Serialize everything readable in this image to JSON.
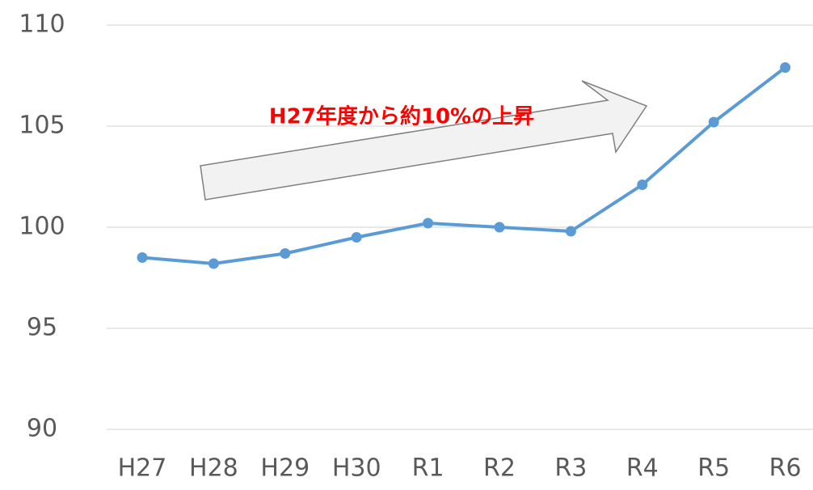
{
  "chart_data": {
    "type": "line",
    "categories": [
      "H27",
      "H28",
      "H29",
      "H30",
      "R1",
      "R2",
      "R3",
      "R4",
      "R5",
      "R6"
    ],
    "series": [
      {
        "name": null,
        "color": "#5b9bd5",
        "values": [
          98.5,
          98.2,
          98.7,
          99.5,
          100.2,
          100.0,
          99.8,
          102.1,
          105.2,
          107.9
        ]
      }
    ],
    "ylim": [
      90,
      110
    ],
    "yticks": [
      90,
      95,
      100,
      105,
      110
    ],
    "grid": true,
    "annotation": "H27年度から約10%の上昇"
  }
}
